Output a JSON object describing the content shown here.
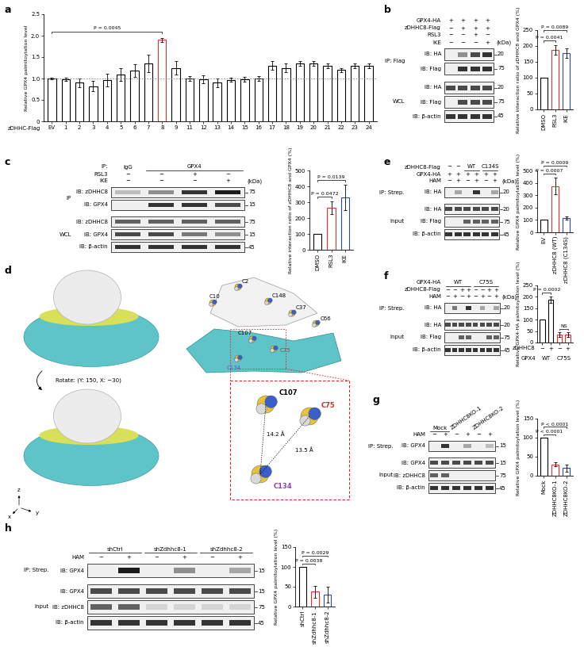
{
  "chart_data": [
    {
      "panel": "a",
      "type": "bar",
      "categories": [
        "EV",
        "1",
        "2",
        "3",
        "4",
        "5",
        "6",
        "7",
        "8",
        "9",
        "11",
        "12",
        "13",
        "14",
        "15",
        "16",
        "17",
        "18",
        "19",
        "20",
        "21",
        "22",
        "23",
        "24"
      ],
      "values": [
        1.0,
        0.98,
        0.9,
        0.82,
        0.97,
        1.1,
        1.18,
        1.35,
        1.9,
        1.25,
        1.0,
        0.98,
        0.9,
        0.97,
        0.98,
        1.0,
        1.3,
        1.25,
        1.35,
        1.35,
        1.3,
        1.2,
        1.3,
        1.3
      ],
      "errors": [
        0.02,
        0.03,
        0.1,
        0.12,
        0.15,
        0.15,
        0.15,
        0.2,
        0.05,
        0.15,
        0.05,
        0.1,
        0.1,
        0.05,
        0.05,
        0.05,
        0.1,
        0.1,
        0.05,
        0.05,
        0.05,
        0.05,
        0.05,
        0.05
      ],
      "colors": [
        "#000000",
        "#000000",
        "#000000",
        "#000000",
        "#000000",
        "#000000",
        "#000000",
        "#000000",
        "#e8302a",
        "#000000",
        "#000000",
        "#000000",
        "#000000",
        "#000000",
        "#000000",
        "#000000",
        "#000000",
        "#000000",
        "#000000",
        "#000000",
        "#000000",
        "#000000",
        "#000000",
        "#000000"
      ],
      "xlabel": "zDHHC-Flag",
      "ylabel": "Relative GPX4 palmitoylation level",
      "ylim": [
        0,
        2.5
      ],
      "yticks": [
        0,
        0.5,
        {
          "value": 1,
          "label": "1.0"
        },
        1.5,
        {
          "value": 2,
          "label": "2.0"
        },
        2.5
      ],
      "reference_line": 1,
      "annotations": [
        {
          "text": "P = 0.0045",
          "between": [
            0,
            8
          ]
        }
      ]
    },
    {
      "type": "bar",
      "categories": [
        "DMSO",
        "RSL3",
        "IKE"
      ],
      "values": [
        100,
        188,
        178
      ],
      "errors": [
        0,
        15,
        15
      ],
      "colors": [
        "#000000",
        "#e8302a",
        "#2b4ba0"
      ],
      "ylabel": "Relative interaction ratio of zDHHC8 and GPX4 (%)",
      "ylim": [
        0,
        250
      ],
      "yticks": [
        0,
        50,
        100,
        150,
        200,
        250
      ],
      "annotations": [
        {
          "text": "P = 0.0041",
          "between": [
            0,
            1
          ]
        },
        {
          "text": "P = 0.0089",
          "between": [
            0,
            2
          ]
        }
      ]
    },
    {
      "type": "bar",
      "categories": [
        "DMSO",
        "RSL3",
        "IKE"
      ],
      "values": [
        100,
        265,
        330
      ],
      "errors": [
        0,
        40,
        80
      ],
      "colors": [
        "#000000",
        "#e8302a",
        "#2b4ba0"
      ],
      "ylabel": "Relative interaction ratio of zDHHC8 and GPX4 (%)",
      "ylim": [
        0,
        500
      ],
      "yticks": [
        0,
        100,
        200,
        300,
        400,
        500
      ],
      "annotations": [
        {
          "text": "P = 0.0472",
          "between": [
            0,
            1
          ]
        },
        {
          "text": "P = 0.0139",
          "between": [
            0,
            2
          ]
        }
      ]
    },
    {
      "type": "bar",
      "categories": [
        "EV",
        "zDHHC8 (WT)",
        "zDHHC8 (C134S)"
      ],
      "values": [
        100,
        375,
        115
      ],
      "errors": [
        0,
        70,
        15
      ],
      "colors": [
        "#000000",
        "#e8302a",
        "#2b4ba0"
      ],
      "ylabel": "Relative GPX4 palmitoylation level (%)",
      "ylim": [
        0,
        500
      ],
      "yticks": [
        0,
        100,
        200,
        300,
        400,
        500
      ],
      "annotations": [
        {
          "text": "P = 0.0007",
          "between": [
            0,
            1
          ]
        },
        {
          "text": "P = 0.0009",
          "between": [
            0,
            2
          ]
        }
      ]
    },
    {
      "type": "bar",
      "categories": [
        "−",
        "+",
        "−",
        "+"
      ],
      "category_label": "zDHHC8",
      "group_label": "GPX4",
      "groups": [
        {
          "text": "WT",
          "span": 2
        },
        {
          "text": "C75S",
          "span": 2
        }
      ],
      "values": [
        100,
        188,
        35,
        35
      ],
      "errors": [
        0,
        15,
        10,
        10
      ],
      "colors": [
        "#000000",
        "#000000",
        "#e8302a",
        "#e8302a"
      ],
      "ylabel": "Relative GPX4-HA palmitoylation level (%)",
      "ylim": [
        0,
        250
      ],
      "yticks": [
        0,
        50,
        100,
        150,
        200,
        250
      ],
      "annotations": [
        {
          "text": "P = 0.0002",
          "between": [
            0,
            1
          ]
        },
        {
          "text": "NS",
          "between": [
            2,
            3
          ]
        }
      ]
    },
    {
      "type": "bar",
      "categories": [
        "Mock",
        "ZDHHC8KO-1",
        "ZDHHC8KO-2"
      ],
      "values": [
        100,
        30,
        20
      ],
      "errors": [
        0,
        5,
        10
      ],
      "colors": [
        "#000000",
        "#e8302a",
        "#2b4ba0"
      ],
      "ylabel": "Relative GPX4 palmitoylation level (%)",
      "ylim": [
        0,
        150
      ],
      "yticks": [
        0,
        50,
        100,
        150
      ],
      "annotations": [
        {
          "text": "P < 0.0001",
          "between": [
            0,
            1
          ]
        },
        {
          "text": "P < 0.0001",
          "between": [
            0,
            2
          ]
        }
      ]
    },
    {
      "type": "bar",
      "categories": [
        "shCtrl",
        "shZdhhc8-1",
        "shZdhhc8-2"
      ],
      "values": [
        100,
        38,
        30
      ],
      "errors": [
        0,
        15,
        20
      ],
      "colors": [
        "#000000",
        "#e8302a",
        "#2b4ba0"
      ],
      "ylabel": "Relative GPX4 palmitoylation level (%)",
      "ylim": [
        0,
        150
      ],
      "yticks": [
        0,
        50,
        100,
        150
      ],
      "annotations": [
        {
          "text": "P = 0.0038",
          "between": [
            0,
            1
          ]
        },
        {
          "text": "P = 0.0029",
          "between": [
            0,
            2
          ]
        }
      ]
    }
  ],
  "blots": [
    {
      "panel": "b",
      "lanes": 4,
      "unit": "(kDa)",
      "header": [
        {
          "label": "GPX4-HA",
          "cells": [
            "+",
            "+",
            "+",
            "+"
          ]
        },
        {
          "label": "zDHHC8-Flag",
          "cells": [
            "−",
            "+",
            "+",
            "+"
          ]
        },
        {
          "label": "RSL3",
          "cells": [
            "−",
            "−",
            "+",
            "−"
          ]
        },
        {
          "label": "IKE",
          "cells": [
            "−",
            "−",
            "−",
            "+"
          ]
        }
      ],
      "sections": [
        {
          "label": "IP: Flag",
          "rows": [
            {
              "label": "IB: HA",
              "kda": 20,
              "bands": [
                0,
                0.4,
                0.7,
                0.8
              ]
            },
            {
              "label": "IB: Flag",
              "kda": 75,
              "bands": [
                0,
                0.8,
                0.8,
                0.8
              ]
            }
          ]
        },
        {
          "label": "WCL",
          "rows": [
            {
              "label": "IB: HA",
              "kda": 20,
              "bands": [
                0.7,
                0.7,
                0.7,
                0.7
              ]
            },
            {
              "label": "IB: Flag",
              "kda": 75,
              "bands": [
                0,
                0.7,
                0.7,
                0.7
              ]
            },
            {
              "label": "IB: β-actin",
              "kda": 45,
              "bands": [
                0.8,
                0.8,
                0.8,
                0.8
              ]
            }
          ]
        }
      ]
    },
    {
      "panel": "c",
      "lanes": 4,
      "unit": "(kDa)",
      "header": [
        {
          "label": "IP:",
          "cells": [
            "IgG",
            {
              "text": "GPX4",
              "span": 3
            }
          ]
        },
        {
          "label": "RSL3",
          "cells": [
            "−",
            "−",
            "+",
            "−"
          ]
        },
        {
          "label": "IKE",
          "cells": [
            "−",
            "−",
            "−",
            "+"
          ]
        }
      ],
      "sections": [
        {
          "label": "IP",
          "rows": [
            {
              "label": "IB: zDHHC8",
              "kda": 75,
              "bands": [
                0.2,
                0.4,
                0.8,
                0.9
              ]
            },
            {
              "label": "IB: GPX4",
              "kda": 15,
              "bands": [
                0,
                0.8,
                0.8,
                0.7
              ]
            }
          ]
        },
        {
          "label": "WCL",
          "rows": [
            {
              "label": "IB: zDHHC8",
              "kda": 75,
              "bands": [
                0.6,
                0.6,
                0.6,
                0.6
              ]
            },
            {
              "label": "IB: GPX4",
              "kda": 15,
              "bands": [
                0.7,
                0.7,
                0.5,
                0.4
              ]
            },
            {
              "label": "IB: β-actin",
              "kda": 45,
              "bands": [
                0.8,
                0.8,
                0.8,
                0.8
              ]
            }
          ]
        }
      ]
    },
    {
      "panel": "e",
      "lanes": 6,
      "unit": "(kDa)",
      "header": [
        {
          "label": "zDHHC8-Flag",
          "cells": [
            "−",
            "−",
            {
              "text": "WT",
              "span": 2
            },
            {
              "text": "C134S",
              "span": 2
            }
          ]
        },
        {
          "label": "GPX4-HA",
          "cells": [
            "+",
            "+",
            "+",
            "+",
            "+",
            "+"
          ]
        },
        {
          "label": "HAM",
          "cells": [
            "−",
            "+",
            "−",
            "+",
            "−",
            "+"
          ]
        }
      ],
      "sections": [
        {
          "label": "IP: Strep.",
          "rows": [
            {
              "label": "IB: HA",
              "kda": 20,
              "bands": [
                0,
                0.3,
                0,
                0.8,
                0,
                0.3
              ]
            }
          ]
        },
        {
          "label": "Input",
          "rows": [
            {
              "label": "IB: HA",
              "kda": 20,
              "bands": [
                0.7,
                0.7,
                0.7,
                0.7,
                0.7,
                0.7
              ]
            },
            {
              "label": "IB: Flag",
              "kda": 75,
              "bands": [
                0,
                0,
                0.6,
                0.6,
                0.6,
                0.6
              ]
            },
            {
              "label": "IB: β-actin",
              "kda": 45,
              "bands": [
                0.8,
                0.8,
                0.8,
                0.8,
                0.8,
                0.8
              ]
            }
          ]
        }
      ]
    },
    {
      "panel": "f",
      "lanes": 8,
      "unit": "(kDa)",
      "header": [
        {
          "label": "GPX4-HA",
          "cells": [
            {
              "text": "WT",
              "span": 4
            },
            {
              "text": "C75S",
              "span": 4
            }
          ]
        },
        {
          "label": "zDHHC8-Flag",
          "cells": [
            "−",
            "−",
            "+",
            "+",
            "−",
            "−",
            "+",
            "+"
          ]
        },
        {
          "label": "HAM",
          "cells": [
            "−",
            "+",
            "−",
            "+",
            "−",
            "+",
            "−",
            "+"
          ]
        }
      ],
      "sections": [
        {
          "label": "IP: Strep.",
          "rows": [
            {
              "label": "IB: HA",
              "kda": 20,
              "bands": [
                0,
                0.5,
                0,
                0.8,
                0,
                0.3,
                0,
                0.3
              ]
            }
          ]
        },
        {
          "label": "Input",
          "rows": [
            {
              "label": "IB: HA",
              "kda": 20,
              "bands": [
                0.7,
                0.7,
                0.7,
                0.7,
                0.7,
                0.7,
                0.7,
                0.7
              ]
            },
            {
              "label": "IB: Flag",
              "kda": 75,
              "bands": [
                0,
                0,
                0.6,
                0.6,
                0,
                0,
                0.6,
                0.6
              ]
            },
            {
              "label": "IB: β-actin",
              "kda": 45,
              "bands": [
                0.8,
                0.8,
                0.8,
                0.8,
                0.8,
                0.8,
                0.8,
                0.8
              ]
            }
          ]
        }
      ]
    },
    {
      "panel": "g",
      "lanes": 6,
      "header": [
        {
          "cells": [
            {
              "text": "Mock",
              "span": 2
            },
            {
              "text": "ZDHHC8KO-1",
              "span": 2
            },
            {
              "text": "ZDHHC8KO-2",
              "span": 2
            }
          ]
        },
        {
          "label": "HAM",
          "cells": [
            "−",
            "+",
            "−",
            "+",
            "−",
            "+"
          ]
        }
      ],
      "sections": [
        {
          "label": "IP: Strep.",
          "rows": [
            {
              "label": "IB: GPX4",
              "kda": 15,
              "bands": [
                0,
                0.8,
                0,
                0.3,
                0,
                0.2
              ]
            }
          ]
        },
        {
          "label": "Input",
          "rows": [
            {
              "label": "IB: GPX4",
              "kda": 15,
              "bands": [
                0.7,
                0.7,
                0.7,
                0.7,
                0.7,
                0.7
              ]
            },
            {
              "label": "IB: zDHHC8",
              "kda": 75,
              "bands": [
                0.6,
                0.6,
                0,
                0,
                0,
                0
              ]
            },
            {
              "label": "IB: β-actin",
              "kda": 45,
              "bands": [
                0.8,
                0.8,
                0.8,
                0.8,
                0.8,
                0.8
              ]
            }
          ]
        }
      ]
    },
    {
      "panel": "h",
      "lanes": 6,
      "header": [
        {
          "cells": [
            {
              "text": "shCtrl",
              "span": 2
            },
            {
              "text": "shZdhhc8-1",
              "span": 2
            },
            {
              "text": "shZdhhc8-2",
              "span": 2
            }
          ]
        },
        {
          "label": "HAM",
          "cells": [
            "−",
            "+",
            "−",
            "+",
            "−",
            "+"
          ]
        }
      ],
      "sections": [
        {
          "label": "IP: Strep.",
          "rows": [
            {
              "label": "IB: GPX4",
              "kda": 15,
              "bands": [
                0,
                0.9,
                0,
                0.4,
                0,
                0.3
              ]
            }
          ]
        },
        {
          "label": "Input",
          "rows": [
            {
              "label": "IB: GPX4",
              "kda": 15,
              "bands": [
                0.7,
                0.7,
                0.7,
                0.7,
                0.7,
                0.7
              ]
            },
            {
              "label": "IB: zDHHC8",
              "kda": 75,
              "bands": [
                0.6,
                0.6,
                0.1,
                0.1,
                0.1,
                0.1
              ]
            },
            {
              "label": "IB: β-actin",
              "kda": 45,
              "bands": [
                0.8,
                0.8,
                0.8,
                0.8,
                0.8,
                0.8
              ]
            }
          ]
        }
      ]
    }
  ],
  "structure": {
    "panel": "d",
    "rotate_label": "Rotate: (Y: 150, X: −30)",
    "axes_labels": [
      "z",
      "x",
      "y"
    ],
    "residues": [
      {
        "label": "C2"
      },
      {
        "label": "C10"
      },
      {
        "label": "C148"
      },
      {
        "label": "C37"
      },
      {
        "label": "C66"
      },
      {
        "label": "C107"
      },
      {
        "label": "C75",
        "color": "#d62728"
      },
      {
        "label": "C134",
        "color": "#8b3fc2"
      }
    ],
    "zoom": {
      "residues": [
        {
          "label": "C107"
        },
        {
          "label": "C75",
          "color": "#d62728"
        },
        {
          "label": "C134",
          "color": "#8b3fc2"
        }
      ],
      "distances": [
        "14.2 Å",
        "13.5 Å"
      ]
    }
  }
}
